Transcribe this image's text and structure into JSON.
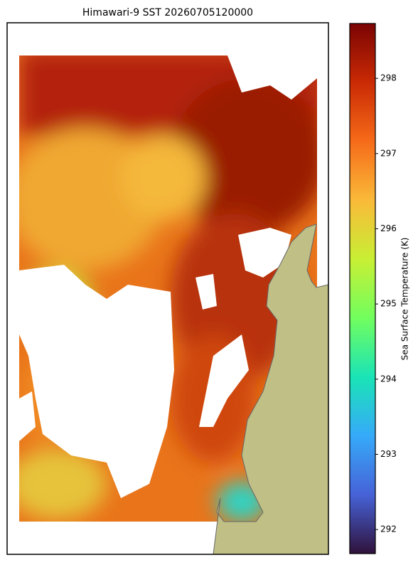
{
  "title": "Himawari-9 SST 20260705120000",
  "colorbar": {
    "label": "Sea Surface Temperature (K)",
    "lim": [
      291.68,
      298.73
    ],
    "ticks": [
      292,
      293,
      294,
      295,
      296,
      297,
      298
    ],
    "colormap": "turbo"
  }
}
